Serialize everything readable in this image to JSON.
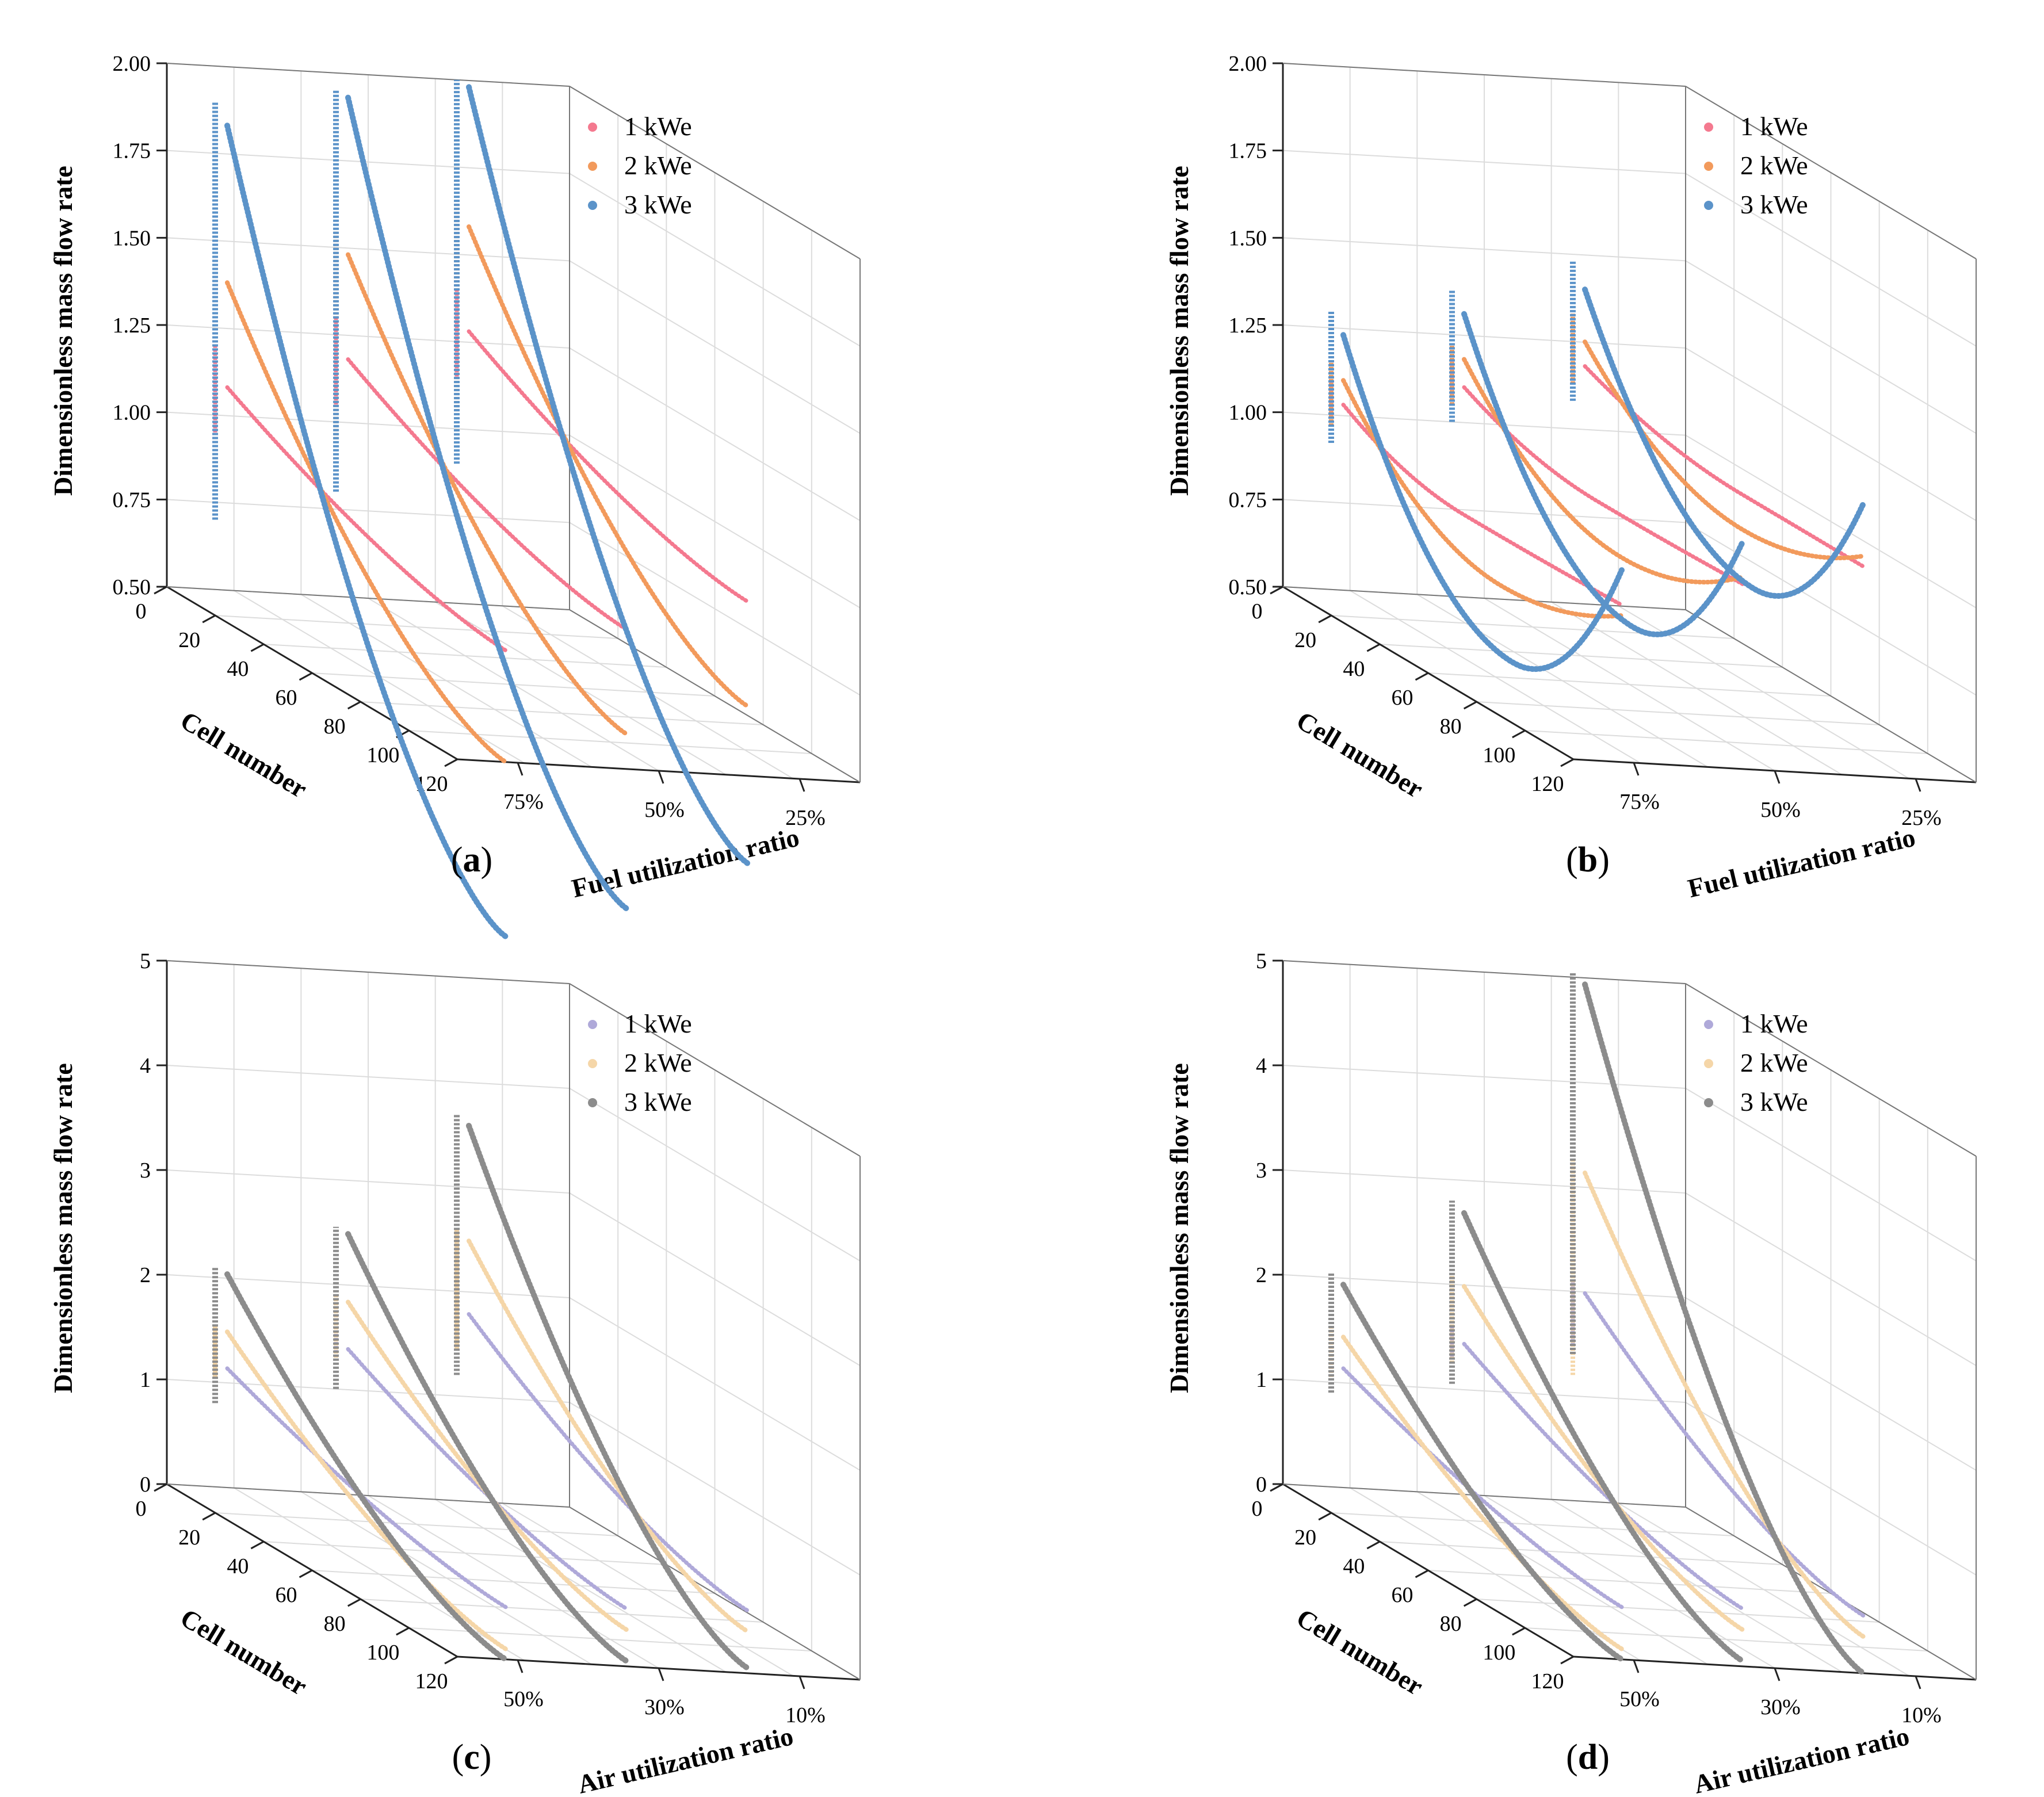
{
  "figure": {
    "legend_labels": [
      "1 kWe",
      "2 kWe",
      "3 kWe"
    ],
    "x_axis_label": "Cell number",
    "z_axis_label": "Dimensionless mass flow rate",
    "cell_ticks": [
      "0",
      "20",
      "40",
      "60",
      "80",
      "100",
      "120"
    ],
    "fuel_palette": [
      "#F4798F",
      "#F29A5C",
      "#5B93C9"
    ],
    "air_palette": [
      "#AFA9D9",
      "#F5D6A8",
      "#8C8C8C"
    ]
  },
  "chart_data": [
    {
      "panel": "a",
      "caption": "a",
      "type": "line",
      "ylabel": "Dimensionless mass flow rate",
      "xlabel": "Cell number",
      "depth_label": "Fuel utilization ratio",
      "depth_ticks": [
        "25%",
        "50%",
        "75%"
      ],
      "z_ticks": [
        "0.50",
        "0.75",
        "1.00",
        "1.25",
        "1.50",
        "1.75",
        "2.00"
      ],
      "z_range": [
        0.5,
        2.0
      ],
      "x_range": [
        0,
        120
      ],
      "colors": [
        "#F4798F",
        "#F29A5C",
        "#5B93C9"
      ],
      "series": [
        {
          "name": "1 kWe",
          "ratio": "75%",
          "start": 1.1,
          "end": 0.82,
          "min_x": 120,
          "vbar": [
            0.95,
            1.2
          ]
        },
        {
          "name": "2 kWe",
          "ratio": "75%",
          "start": 1.4,
          "end": 0.5,
          "min_x": 120,
          "vbar": [
            0.85,
            1.45
          ]
        },
        {
          "name": "3 kWe",
          "ratio": "75%",
          "start": 1.85,
          "end": 0.0,
          "min_x": 120,
          "vbar": [
            0.7,
            1.9
          ]
        },
        {
          "name": "1 kWe",
          "ratio": "50%",
          "start": 1.2,
          "end": 0.9,
          "min_x": 120,
          "vbar": [
            1.05,
            1.3
          ]
        },
        {
          "name": "2 kWe",
          "ratio": "50%",
          "start": 1.5,
          "end": 0.6,
          "min_x": 120,
          "vbar": [
            0.95,
            1.55
          ]
        },
        {
          "name": "3 kWe",
          "ratio": "50%",
          "start": 1.95,
          "end": 0.1,
          "min_x": 120,
          "vbar": [
            0.8,
            1.95
          ]
        },
        {
          "name": "1 kWe",
          "ratio": "25%",
          "start": 1.3,
          "end": 1.0,
          "min_x": 120,
          "vbar": [
            1.15,
            1.4
          ]
        },
        {
          "name": "2 kWe",
          "ratio": "25%",
          "start": 1.6,
          "end": 0.7,
          "min_x": 120,
          "vbar": [
            1.05,
            1.65
          ]
        },
        {
          "name": "3 kWe",
          "ratio": "25%",
          "start": 2.0,
          "end": 0.25,
          "min_x": 120,
          "vbar": [
            0.9,
            2.0
          ]
        }
      ]
    },
    {
      "panel": "b",
      "caption": "b",
      "type": "line",
      "ylabel": "Dimensionless mass flow rate",
      "xlabel": "Cell number",
      "depth_label": "Fuel utilization ratio",
      "depth_ticks": [
        "25%",
        "50%",
        "75%"
      ],
      "z_ticks": [
        "0.50",
        "0.75",
        "1.00",
        "1.25",
        "1.50",
        "1.75",
        "2.00"
      ],
      "z_range": [
        0.5,
        2.0
      ],
      "x_range": [
        0,
        120
      ],
      "colors": [
        "#F4798F",
        "#F29A5C",
        "#5B93C9"
      ],
      "series": [
        {
          "name": "1 kWe",
          "ratio": "75%",
          "start": 1.05,
          "end": 0.95,
          "min_x": 55,
          "min": 0.94,
          "vbar": [
            1.0,
            1.1
          ]
        },
        {
          "name": "2 kWe",
          "ratio": "75%",
          "start": 1.12,
          "end": 0.92,
          "min_x": 70,
          "min": 0.8,
          "vbar": [
            0.97,
            1.15
          ]
        },
        {
          "name": "3 kWe",
          "ratio": "75%",
          "start": 1.25,
          "end": 1.05,
          "min_x": 75,
          "min": 0.6,
          "vbar": [
            0.92,
            1.3
          ]
        },
        {
          "name": "1 kWe",
          "ratio": "50%",
          "start": 1.12,
          "end": 1.03,
          "min_x": 60,
          "min": 1.02,
          "vbar": [
            1.08,
            1.18
          ]
        },
        {
          "name": "2 kWe",
          "ratio": "50%",
          "start": 1.2,
          "end": 1.05,
          "min_x": 70,
          "min": 0.9,
          "vbar": [
            1.05,
            1.22
          ]
        },
        {
          "name": "3 kWe",
          "ratio": "50%",
          "start": 1.33,
          "end": 1.15,
          "min_x": 75,
          "min": 0.72,
          "vbar": [
            1.0,
            1.38
          ]
        },
        {
          "name": "1 kWe",
          "ratio": "25%",
          "start": 1.2,
          "end": 1.1,
          "min_x": 70,
          "min": 1.1,
          "vbar": [
            1.15,
            1.25
          ]
        },
        {
          "name": "2 kWe",
          "ratio": "25%",
          "start": 1.27,
          "end": 1.13,
          "min_x": 70,
          "min": 1.0,
          "vbar": [
            1.13,
            1.33
          ]
        },
        {
          "name": "3 kWe",
          "ratio": "25%",
          "start": 1.42,
          "end": 1.28,
          "min_x": 75,
          "min": 0.85,
          "vbar": [
            1.08,
            1.48
          ]
        }
      ]
    },
    {
      "panel": "c",
      "caption": "c",
      "type": "line",
      "ylabel": "Dimensionless mass flow rate",
      "xlabel": "Cell number",
      "depth_label": "Air utilization ratio",
      "depth_ticks": [
        "10%",
        "30%",
        "50%"
      ],
      "z_ticks": [
        "0",
        "1",
        "2",
        "3",
        "4",
        "5"
      ],
      "z_range": [
        0,
        5
      ],
      "x_range": [
        0,
        120
      ],
      "colors": [
        "#AFA9D9",
        "#F5D6A8",
        "#8C8C8C"
      ],
      "series": [
        {
          "name": "1 kWe",
          "ratio": "50%",
          "start": 1.2,
          "end": 0.5,
          "min_x": 120,
          "vbar": [
            1.05,
            1.3
          ]
        },
        {
          "name": "2 kWe",
          "ratio": "50%",
          "start": 1.55,
          "end": 0.1,
          "min_x": 120,
          "vbar": [
            1.05,
            1.55
          ]
        },
        {
          "name": "3 kWe",
          "ratio": "50%",
          "start": 2.1,
          "end": 0.0,
          "min_x": 120,
          "vbar": [
            0.8,
            2.1
          ]
        },
        {
          "name": "1 kWe",
          "ratio": "30%",
          "start": 1.45,
          "end": 0.55,
          "min_x": 120,
          "vbar": [
            1.35,
            1.55
          ]
        },
        {
          "name": "2 kWe",
          "ratio": "30%",
          "start": 1.9,
          "end": 0.35,
          "min_x": 120,
          "vbar": [
            1.3,
            1.9
          ]
        },
        {
          "name": "3 kWe",
          "ratio": "30%",
          "start": 2.55,
          "end": 0.05,
          "min_x": 120,
          "vbar": [
            1.0,
            2.55
          ]
        },
        {
          "name": "1 kWe",
          "ratio": "10%",
          "start": 1.85,
          "end": 0.6,
          "min_x": 120,
          "vbar": [
            1.55,
            1.95
          ]
        },
        {
          "name": "2 kWe",
          "ratio": "10%",
          "start": 2.55,
          "end": 0.4,
          "min_x": 120,
          "vbar": [
            1.45,
            2.6
          ]
        },
        {
          "name": "3 kWe",
          "ratio": "10%",
          "start": 3.65,
          "end": 0.05,
          "min_x": 120,
          "vbar": [
            1.2,
            3.7
          ]
        }
      ]
    },
    {
      "panel": "d",
      "caption": "d",
      "type": "line",
      "ylabel": "Dimensionless mass flow rate",
      "xlabel": "Cell number",
      "depth_label": "Air utilization ratio",
      "depth_ticks": [
        "10%",
        "30%",
        "50%"
      ],
      "z_ticks": [
        "0",
        "1",
        "2",
        "3",
        "4",
        "5"
      ],
      "z_range": [
        0,
        5
      ],
      "x_range": [
        0,
        120
      ],
      "colors": [
        "#AFA9D9",
        "#F5D6A8",
        "#8C8C8C"
      ],
      "series": [
        {
          "name": "1 kWe",
          "ratio": "50%",
          "start": 1.2,
          "end": 0.5,
          "min_x": 120,
          "vbar": [
            1.05,
            1.3
          ]
        },
        {
          "name": "2 kWe",
          "ratio": "50%",
          "start": 1.5,
          "end": 0.1,
          "min_x": 120,
          "vbar": [
            1.05,
            1.55
          ]
        },
        {
          "name": "3 kWe",
          "ratio": "50%",
          "start": 2.0,
          "end": 0.0,
          "min_x": 120,
          "vbar": [
            0.9,
            2.05
          ]
        },
        {
          "name": "1 kWe",
          "ratio": "30%",
          "start": 1.5,
          "end": 0.55,
          "min_x": 120,
          "vbar": [
            1.3,
            1.6
          ]
        },
        {
          "name": "2 kWe",
          "ratio": "30%",
          "start": 2.05,
          "end": 0.35,
          "min_x": 120,
          "vbar": [
            1.25,
            2.1
          ]
        },
        {
          "name": "3 kWe",
          "ratio": "30%",
          "start": 2.75,
          "end": 0.05,
          "min_x": 120,
          "vbar": [
            1.05,
            2.8
          ]
        },
        {
          "name": "1 kWe",
          "ratio": "10%",
          "start": 2.05,
          "end": 0.55,
          "min_x": 120,
          "vbar": [
            1.5,
            2.1
          ]
        },
        {
          "name": "2 kWe",
          "ratio": "10%",
          "start": 3.2,
          "end": 0.35,
          "min_x": 120,
          "vbar": [
            1.2,
            3.25
          ]
        },
        {
          "name": "3 kWe",
          "ratio": "10%",
          "start": 5.0,
          "end": 0.0,
          "min_x": 120,
          "vbar": [
            1.4,
            5.05
          ]
        }
      ]
    }
  ]
}
